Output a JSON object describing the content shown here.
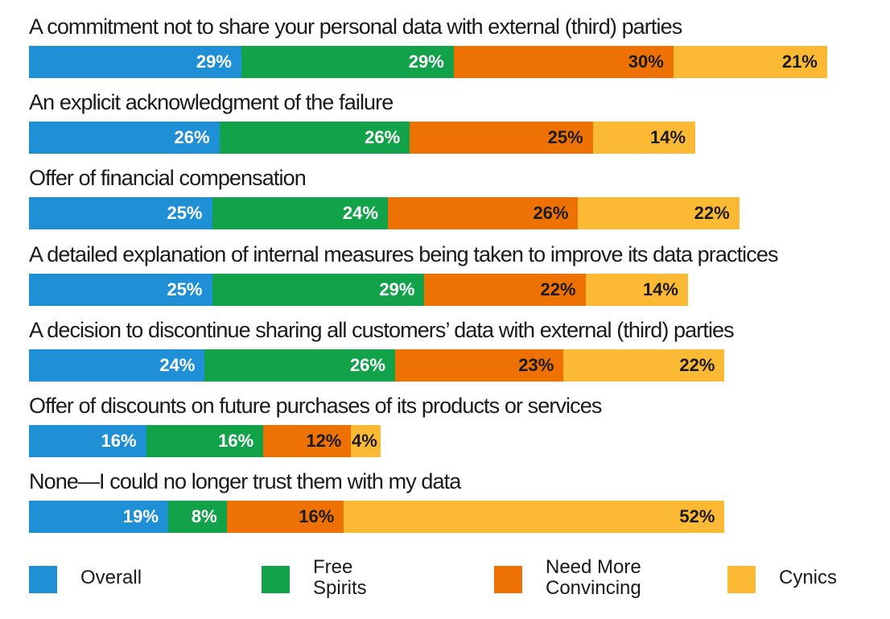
{
  "chart_data": {
    "type": "bar",
    "orientation": "horizontal",
    "stacked": true,
    "categories": [
      "A commitment not to share your personal data with external (third) parties",
      "An explicit acknowledgment of the failure",
      "Offer of financial compensation",
      "A detailed explanation of internal measures being taken to improve its data practices",
      "A decision to discontinue sharing all customers’ data with external (third) parties",
      "Offer of discounts on future purchases of its products or services",
      "None—I could no longer trust them with my data"
    ],
    "series": [
      {
        "name": "Overall",
        "color": "#1f8fd6",
        "label_color": "#ffffff",
        "values": [
          29,
          26,
          25,
          25,
          24,
          16,
          19
        ]
      },
      {
        "name": "Free Spirits",
        "color": "#12a24a",
        "label_color": "#ffffff",
        "values": [
          29,
          26,
          24,
          29,
          26,
          16,
          8
        ]
      },
      {
        "name": "Need More Convincing",
        "color": "#ee7203",
        "label_color": "#1a1a1a",
        "values": [
          30,
          25,
          26,
          22,
          23,
          12,
          16
        ]
      },
      {
        "name": "Cynics",
        "color": "#fcb934",
        "label_color": "#1a1a1a",
        "values": [
          21,
          14,
          22,
          14,
          22,
          4,
          52
        ]
      }
    ],
    "value_suffix": "%",
    "legend_position": "bottom",
    "grid": false
  },
  "legend": {
    "items": [
      {
        "label": "Overall",
        "color": "#1f8fd6"
      },
      {
        "label": "Free Spirits",
        "color": "#12a24a"
      },
      {
        "label": "Need More\nConvincing",
        "color": "#ee7203"
      },
      {
        "label": "Cynics",
        "color": "#fcb934"
      }
    ]
  }
}
